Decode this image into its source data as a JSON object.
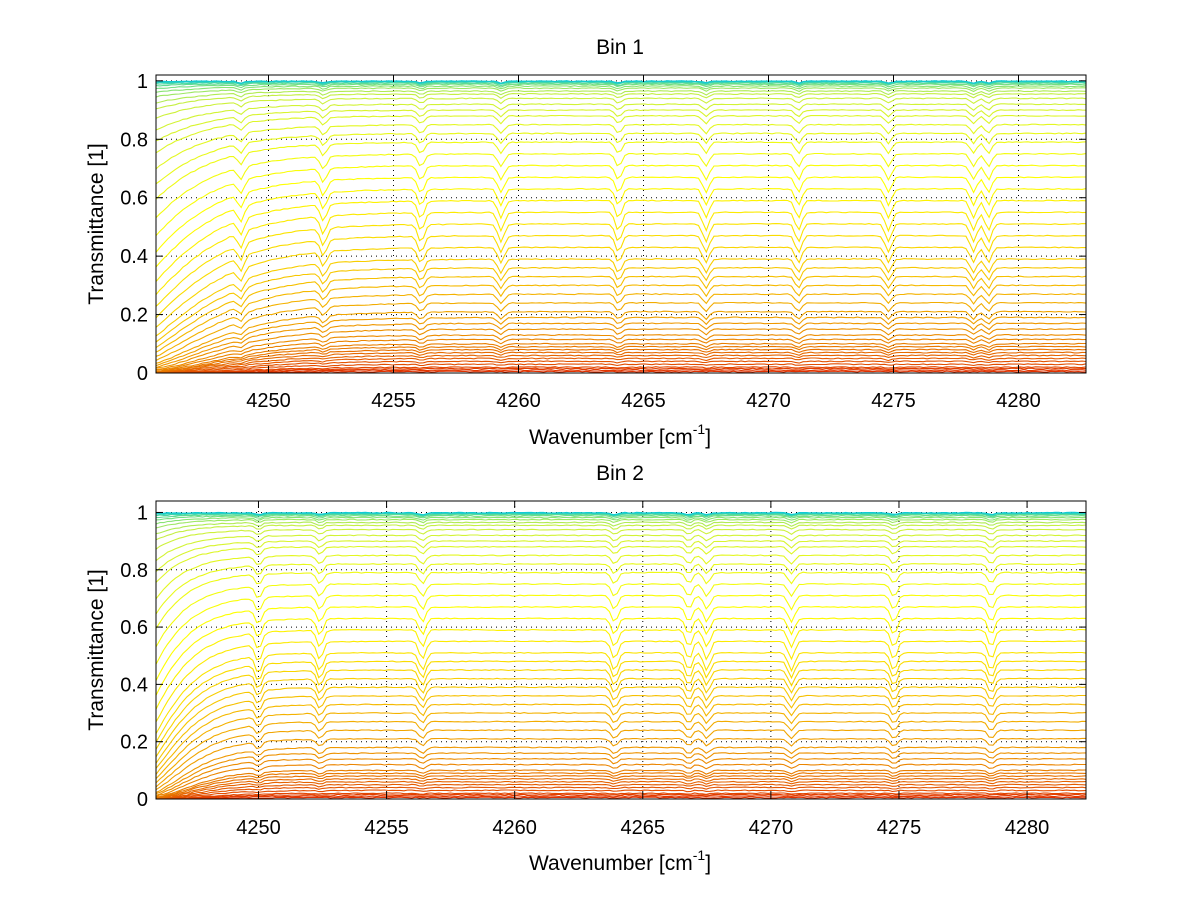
{
  "chart_data": [
    {
      "type": "line",
      "title": "Bin 1",
      "xlabel": "Wavenumber",
      "xlabel_unit_base": "cm",
      "xlabel_unit_exp": "-1",
      "ylabel": "Transmittance [1]",
      "xlim": [
        4245.5,
        4282.7
      ],
      "ylim": [
        0,
        1.02
      ],
      "xticks": [
        4250,
        4255,
        4260,
        4265,
        4270,
        4275,
        4280
      ],
      "yticks": [
        0,
        0.2,
        0.4,
        0.6,
        0.8,
        1
      ],
      "ytick_labels": [
        "0",
        "0.2",
        "0.4",
        "0.6",
        "0.8",
        "1"
      ],
      "xtick_labels": [
        "4250",
        "4255",
        "4260",
        "4265",
        "4270",
        "4275",
        "4280"
      ],
      "grid": true,
      "colormap": [
        "#0b2a8c",
        "#00c8e0",
        "#c8f040",
        "#ffff00",
        "#f5b800",
        "#e87800",
        "#e03000"
      ],
      "x_range": [
        4245.5,
        4282.7
      ],
      "series_count": 60,
      "plateau_levels_low_to_high": [
        0.005,
        0.01,
        0.015,
        0.02,
        0.03,
        0.04,
        0.05,
        0.06,
        0.07,
        0.08,
        0.09,
        0.1,
        0.115,
        0.13,
        0.15,
        0.17,
        0.19,
        0.21,
        0.24,
        0.27,
        0.3,
        0.33,
        0.36,
        0.39,
        0.43,
        0.47,
        0.51,
        0.55,
        0.59,
        0.63,
        0.67,
        0.71,
        0.75,
        0.79,
        0.82,
        0.85,
        0.88,
        0.9,
        0.92,
        0.94,
        0.955,
        0.965,
        0.975,
        0.982,
        0.988,
        0.992,
        0.995,
        0.997,
        0.998,
        0.999
      ],
      "absorption_lines": [
        4248.9,
        4252.2,
        4256.1,
        4259.3,
        4264.0,
        4267.5,
        4271.2,
        4274.8,
        4278.2,
        4278.8
      ],
      "edge_rise_end": 4250.0
    },
    {
      "type": "line",
      "title": "Bin 2",
      "xlabel": "Wavenumber",
      "xlabel_unit_base": "cm",
      "xlabel_unit_exp": "-1",
      "ylabel": "Transmittance [1]",
      "xlim": [
        4246.0,
        4282.3
      ],
      "ylim": [
        0,
        1.04
      ],
      "xticks": [
        4250,
        4255,
        4260,
        4265,
        4270,
        4275,
        4280
      ],
      "yticks": [
        0,
        0.2,
        0.4,
        0.6,
        0.8,
        1
      ],
      "ytick_labels": [
        "0",
        "0.2",
        "0.4",
        "0.6",
        "0.8",
        "1"
      ],
      "xtick_labels": [
        "4250",
        "4255",
        "4260",
        "4265",
        "4270",
        "4275",
        "4280"
      ],
      "grid": true,
      "colormap": [
        "#0b2a8c",
        "#00c8e0",
        "#c8f040",
        "#ffff00",
        "#f5b800",
        "#e87800",
        "#e03000"
      ],
      "x_range": [
        4246.0,
        4282.3
      ],
      "series_count": 60,
      "plateau_levels_low_to_high": [
        0.005,
        0.01,
        0.015,
        0.02,
        0.03,
        0.04,
        0.05,
        0.06,
        0.07,
        0.08,
        0.09,
        0.1,
        0.12,
        0.14,
        0.16,
        0.18,
        0.21,
        0.24,
        0.27,
        0.3,
        0.33,
        0.36,
        0.39,
        0.42,
        0.45,
        0.48,
        0.51,
        0.55,
        0.59,
        0.63,
        0.67,
        0.71,
        0.75,
        0.79,
        0.82,
        0.85,
        0.88,
        0.9,
        0.92,
        0.94,
        0.955,
        0.965,
        0.975,
        0.982,
        0.988,
        0.992,
        0.995,
        0.997,
        0.998,
        0.999
      ],
      "absorption_lines": [
        4250.0,
        4252.4,
        4256.4,
        4263.9,
        4266.8,
        4267.5,
        4270.8,
        4274.8,
        4278.6
      ],
      "edge_rise_end": 4248.5
    }
  ]
}
